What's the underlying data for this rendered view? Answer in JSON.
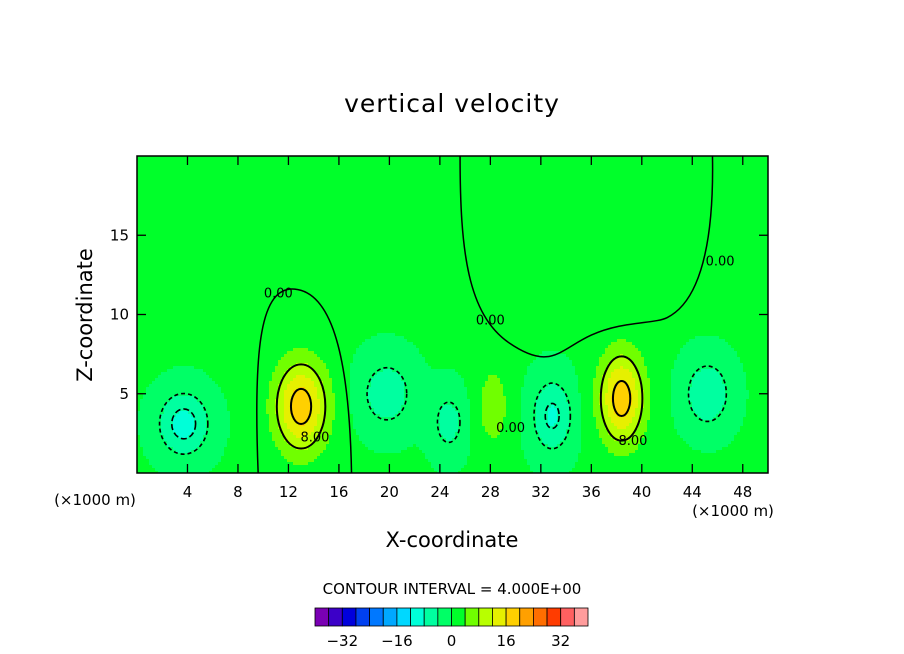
{
  "chart_data": {
    "type": "contour",
    "title": "vertical velocity",
    "xlabel": "X-coordinate",
    "ylabel": "Z-coordinate",
    "x_unit_left": "(×1000 m)",
    "x_unit_right": "(×1000 m)",
    "xlim": [
      0,
      50
    ],
    "ylim": [
      0,
      20
    ],
    "xticks": [
      4,
      8,
      12,
      16,
      20,
      24,
      28,
      32,
      36,
      40,
      44,
      48
    ],
    "xtick_labels": [
      "4",
      "8",
      "12",
      "16",
      "20",
      "24",
      "28",
      "32",
      "36",
      "40",
      "44",
      "48"
    ],
    "yticks": [
      5,
      10,
      15
    ],
    "ytick_labels": [
      "5",
      "10",
      "15"
    ],
    "contour_interval_text": "CONTOUR INTERVAL = 4.000E+00",
    "contour_interval": 4,
    "contour_line_labels": [
      {
        "text": "0.00",
        "x": 11.2,
        "z": 11.3
      },
      {
        "text": "8.00",
        "x": 14.1,
        "z": 2.2
      },
      {
        "text": "0.00",
        "x": 28.0,
        "z": 9.6
      },
      {
        "text": "0.00",
        "x": 29.6,
        "z": 2.8
      },
      {
        "text": "8.00",
        "x": 39.3,
        "z": 2.0
      },
      {
        "text": "0.00",
        "x": 46.2,
        "z": 13.3
      }
    ],
    "features": [
      {
        "kind": "updraft",
        "x": 13.0,
        "z": 4.2,
        "max": 18
      },
      {
        "kind": "updraft",
        "x": 38.4,
        "z": 4.7,
        "max": 18
      },
      {
        "kind": "updraft",
        "x": 28.2,
        "z": 4.2,
        "max": 6
      },
      {
        "kind": "downdraft",
        "x": 3.7,
        "z": 3.1,
        "min": -10
      },
      {
        "kind": "downdraft",
        "x": 19.8,
        "z": 5.0,
        "min": -7
      },
      {
        "kind": "downdraft",
        "x": 24.7,
        "z": 3.2,
        "min": -6
      },
      {
        "kind": "downdraft",
        "x": 32.9,
        "z": 3.6,
        "min": -9
      },
      {
        "kind": "downdraft",
        "x": 45.2,
        "z": 5.0,
        "min": -8
      }
    ],
    "colorbar": {
      "levels": [
        -36,
        -32,
        -28,
        -24,
        -20,
        -16,
        -12,
        -8,
        -4,
        0,
        4,
        8,
        12,
        16,
        20,
        24,
        28,
        32,
        36
      ],
      "tick_values": [
        -32,
        -16,
        0,
        16,
        32
      ],
      "tick_labels": [
        "−32",
        "−16",
        "0",
        "16",
        "32"
      ],
      "colors": [
        "#7a00b4",
        "#3c00c8",
        "#0000dc",
        "#0040f0",
        "#0078ff",
        "#00a8ff",
        "#00d8ff",
        "#00ffd8",
        "#00ffa0",
        "#00ff66",
        "#00ff2a",
        "#70ff00",
        "#b8ff00",
        "#e6f000",
        "#ffd000",
        "#ffa000",
        "#ff6e00",
        "#ff3c00",
        "#ff6060",
        "#ff9c9c"
      ]
    },
    "grid": false,
    "legend": "bottom-center colorbar"
  }
}
